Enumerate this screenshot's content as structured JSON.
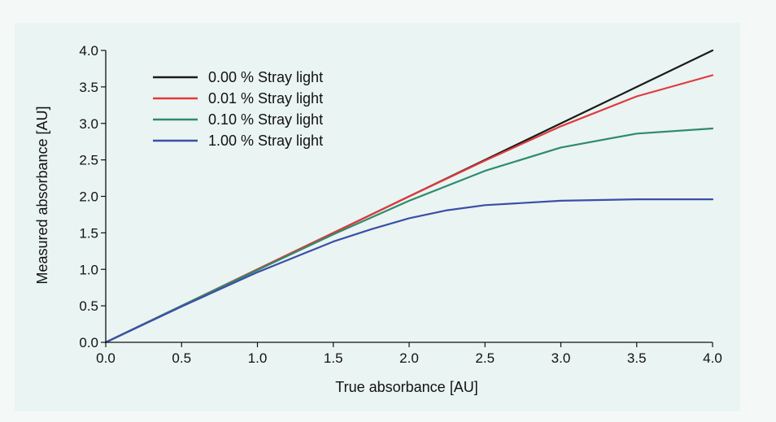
{
  "chart_data": {
    "type": "line",
    "xlabel": "True absorbance [AU]",
    "ylabel": "Measured absorbance [AU]",
    "xlim": [
      0,
      4
    ],
    "ylim": [
      0,
      4
    ],
    "x_ticks": [
      "0.0",
      "0.5",
      "1.0",
      "1.5",
      "2.0",
      "2.5",
      "3.0",
      "3.5",
      "4.0"
    ],
    "y_ticks": [
      "0.0",
      "0.5",
      "1.0",
      "1.5",
      "2.0",
      "2.5",
      "3.0",
      "3.5",
      "4.0"
    ],
    "grid": false,
    "legend_position": "top-left",
    "series": [
      {
        "name": "0.00 % Stray light",
        "color": "#1a1a1a",
        "x": [
          0,
          0.5,
          1.0,
          1.5,
          2.0,
          2.5,
          3.0,
          3.5,
          4.0
        ],
        "y": [
          0,
          0.5,
          1.0,
          1.5,
          2.0,
          2.5,
          3.0,
          3.5,
          4.0
        ]
      },
      {
        "name": "0.01 % Stray light",
        "color": "#e03a3e",
        "x": [
          0,
          0.5,
          1.0,
          1.5,
          2.0,
          2.5,
          3.0,
          3.5,
          4.0
        ],
        "y": [
          0,
          0.5,
          1.0,
          1.5,
          2.0,
          2.49,
          2.96,
          3.37,
          3.66
        ]
      },
      {
        "name": "0.10 % Stray light",
        "color": "#2e8b6a",
        "x": [
          0,
          0.5,
          1.0,
          1.5,
          2.0,
          2.5,
          3.0,
          3.5,
          4.0
        ],
        "y": [
          0,
          0.5,
          0.99,
          1.48,
          1.94,
          2.35,
          2.67,
          2.86,
          2.93
        ]
      },
      {
        "name": "1.00 % Stray light",
        "color": "#3a4fa8",
        "x": [
          0,
          0.5,
          1.0,
          1.25,
          1.5,
          1.75,
          2.0,
          2.25,
          2.5,
          3.0,
          3.5,
          4.0
        ],
        "y": [
          0,
          0.49,
          0.96,
          1.17,
          1.38,
          1.55,
          1.7,
          1.81,
          1.88,
          1.94,
          1.96,
          1.96
        ]
      }
    ]
  }
}
